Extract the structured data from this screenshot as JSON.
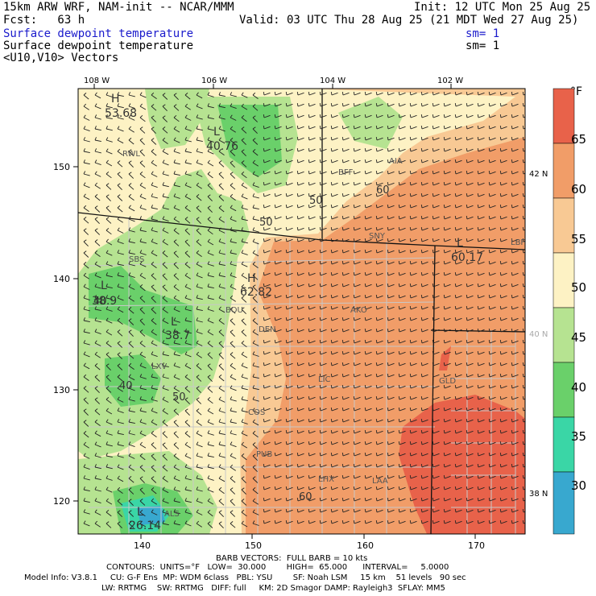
{
  "header": {
    "model_line": "15km ARW WRF, NAM-init -- NCAR/MMM",
    "init_line": "Init: 12 UTC Mon 25 Aug 25",
    "fcst_line": "Fcst:   63 h",
    "valid_line": "Valid: 03 UTC Thu 28 Aug 25 (21 MDT Wed 27 Aug 25)",
    "field1": "Surface dewpoint temperature",
    "field1_sm": "sm= 1",
    "field2": "Surface dewpoint temperature",
    "field2_sm": "sm= 1",
    "field3": "<U10,V10> Vectors"
  },
  "map": {
    "top_labels": [
      "108 W",
      "106 W",
      "104 W",
      "102 W"
    ],
    "left_labels": [
      "150",
      "140",
      "130",
      "120"
    ],
    "bottom_labels": [
      "140",
      "150",
      "160",
      "170"
    ],
    "right_labels": [
      "42 N",
      "40 N",
      "38 N"
    ],
    "stations": [
      "RWL",
      "BFF",
      "AIA",
      "SNY",
      "LBF",
      "SBS",
      "DEN",
      "AKO",
      "BOU",
      "LXV",
      "LIC",
      "GLD",
      "COS",
      "PUB",
      "LHX",
      "LAA",
      "ALS"
    ],
    "contour_labels": [
      "50",
      "60",
      "50",
      "50",
      "60",
      "40",
      "40"
    ],
    "extrema": [
      {
        "type": "H",
        "value": "53.68"
      },
      {
        "type": "L",
        "value": "40.76"
      },
      {
        "type": "L",
        "value": "38.9"
      },
      {
        "type": "L",
        "value": "38.7"
      },
      {
        "type": "H",
        "value": "62.82"
      },
      {
        "type": "L",
        "value": "60.17"
      },
      {
        "type": "L",
        "value": "26.14"
      }
    ]
  },
  "colorbar": {
    "unit": "°F",
    "labels": [
      "65",
      "60",
      "55",
      "50",
      "45",
      "40",
      "35",
      "30"
    ],
    "colors": [
      "#e8624a",
      "#f19d68",
      "#f8c994",
      "#fdf2c4",
      "#b6e391",
      "#6ad06a",
      "#3ad6a6",
      "#38a8cf"
    ]
  },
  "footer": {
    "line1": "BARB VECTORS:  FULL BARB = 10 kts",
    "line2": "CONTOURS:  UNITS=°F   LOW=  30.000        HIGH=  65.000      INTERVAL=     5.0000",
    "line3": "Model Info: V3.8.1     CU: G-F Ens  MP: WDM 6class   PBL: YSU        SF: Noah LSM     15 km    51 levels   90 sec",
    "line4": "LW: RRTMG    SW: RRTMG   DIFF: full     KM: 2D Smagor DAMP: Rayleigh3  SFLAY: MM5"
  }
}
